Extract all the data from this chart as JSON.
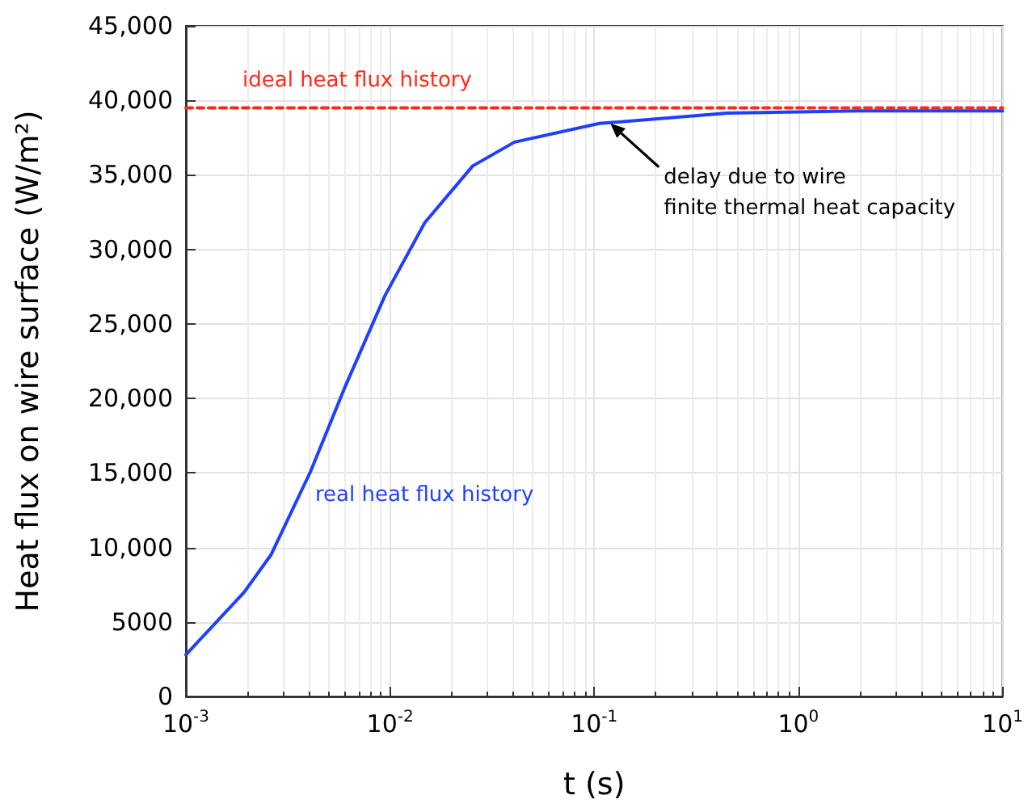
{
  "chart_data": {
    "type": "line",
    "xlabel": "t (s)",
    "ylabel": "Heat flux on wire surface (W/m²)",
    "series": [
      {
        "name": "ideal heat flux history",
        "color": "#ff2a1a",
        "line_style": "dashed",
        "x": [
          0.001,
          10
        ],
        "values": [
          39500,
          39500
        ]
      },
      {
        "name": "real heat flux history",
        "color": "#1f3fff",
        "line_style": "solid",
        "x": [
          0.001,
          0.00193,
          0.00261,
          0.00408,
          0.00603,
          0.00944,
          0.0148,
          0.0254,
          0.0407,
          0.106,
          0.448,
          1.99,
          10
        ],
        "values": [
          2800,
          7000,
          9500,
          15100,
          20800,
          26900,
          31800,
          35600,
          37200,
          38450,
          39150,
          39300,
          39300
        ]
      }
    ],
    "annotations": [
      {
        "text": "delay due to wire\nfinite thermal heat capacity",
        "x": 0.12,
        "y": 38450
      }
    ],
    "log": "x",
    "grid": true,
    "legend": false,
    "marker": "none",
    "xlim": [
      0.001,
      10
    ],
    "xticks": [
      {
        "value": 0.001,
        "label": "10$^{-3}$"
      },
      {
        "value": 0.01,
        "label": "10$^{-2}$"
      },
      {
        "value": 0.1,
        "label": "10$^{-1}$"
      },
      {
        "value": 1,
        "label": "10$^{0}$"
      },
      {
        "value": 10,
        "label": "10$^{1}$"
      }
    ],
    "ylim": [
      0,
      45000
    ],
    "yticks": [
      0,
      5000,
      {
        "value": 10000,
        "label": "10,000"
      },
      {
        "value": 15000,
        "label": "15,000"
      },
      {
        "value": 20000,
        "label": "20,000"
      },
      {
        "value": 25000,
        "label": "25,000"
      },
      {
        "value": 30000,
        "label": "30,000"
      },
      {
        "value": 35000,
        "label": "35,000"
      },
      {
        "value": 40000,
        "label": "40,000"
      },
      {
        "value": 45000,
        "label": "45,000"
      }
    ]
  }
}
